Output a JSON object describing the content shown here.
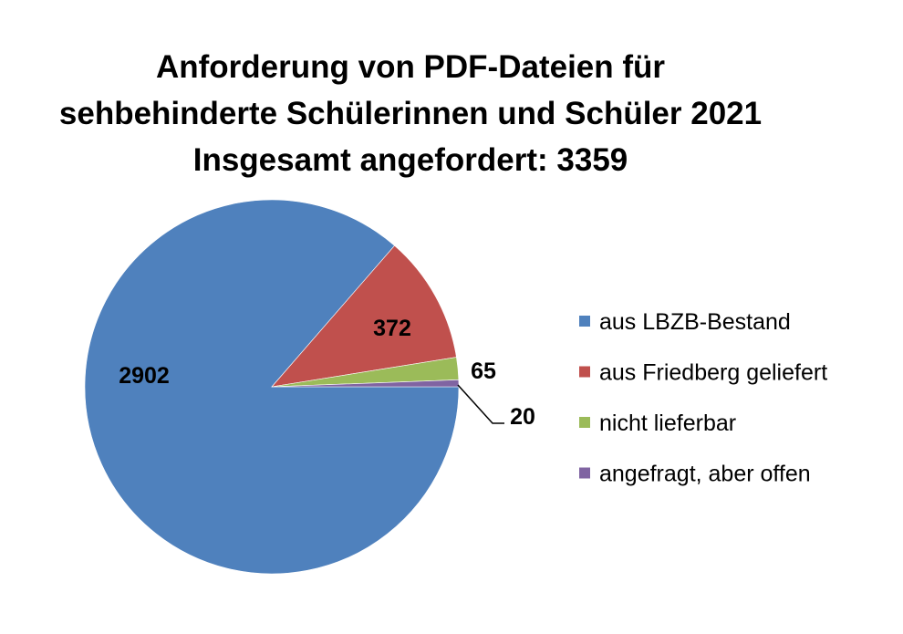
{
  "chart_data": {
    "type": "pie",
    "title": [
      "Anforderung von PDF-Dateien für",
      "sehbehinderte Schülerinnen und Schüler 2021",
      "Insgesamt angefordert: 3359"
    ],
    "categories": [
      "aus LBZB-Bestand",
      "aus Friedberg geliefert",
      "nicht lieferbar",
      "angefragt, aber offen"
    ],
    "values": [
      2902,
      372,
      65,
      20
    ],
    "data_labels": [
      "2902",
      "372",
      "65",
      "20"
    ],
    "colors": [
      "#4F81BD",
      "#C0504D",
      "#9BBB59",
      "#8064A2"
    ],
    "legend_position": "right",
    "start": "3 o'clock, clockwise"
  }
}
